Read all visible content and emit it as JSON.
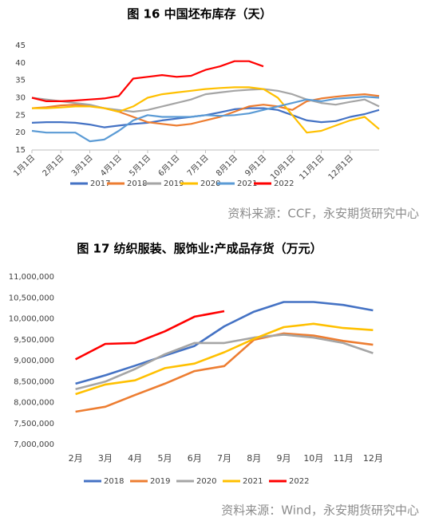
{
  "chart_data": [
    {
      "type": "line",
      "title": "图 16 中国坯布库存（天）",
      "x": [
        0,
        0.5,
        1,
        1.5,
        2,
        2.5,
        3,
        3.5,
        4,
        4.5,
        5,
        5.5,
        6,
        6.5,
        7,
        7.5,
        8,
        8.5,
        9,
        9.5,
        10,
        10.5,
        11,
        11.5,
        12
      ],
      "xlim": [
        0,
        12
      ],
      "xticks": [
        {
          "value": 0,
          "label": "1月1日"
        },
        {
          "value": 1,
          "label": "2月1日"
        },
        {
          "value": 2,
          "label": "3月1日"
        },
        {
          "value": 3,
          "label": "4月1日"
        },
        {
          "value": 4,
          "label": "5月1日"
        },
        {
          "value": 5,
          "label": "6月1日"
        },
        {
          "value": 6,
          "label": "7月1日"
        },
        {
          "value": 7,
          "label": "8月1日"
        },
        {
          "value": 8,
          "label": "9月1日"
        },
        {
          "value": 9,
          "label": "10月1日"
        },
        {
          "value": 10,
          "label": "11月1日"
        },
        {
          "value": 11,
          "label": "12月1日"
        }
      ],
      "ylim": [
        15,
        45
      ],
      "yticks": [
        15,
        20,
        25,
        30,
        35,
        40,
        45
      ],
      "series": [
        {
          "name": "2017",
          "color": "#4472c4",
          "values": [
            22.8,
            23,
            23,
            22.8,
            22.3,
            21.5,
            22,
            22.5,
            22.8,
            23.5,
            24,
            24.5,
            25,
            25.8,
            26.7,
            27,
            27,
            26.5,
            25,
            23.5,
            23,
            23.3,
            24.5,
            25.3,
            26.5
          ]
        },
        {
          "name": "2018",
          "color": "#ed7d31",
          "values": [
            27,
            27.3,
            27.8,
            28,
            27.8,
            27,
            26,
            24.5,
            23,
            22.5,
            22,
            22.5,
            23.5,
            24.5,
            26,
            27.5,
            28,
            27.5,
            26.5,
            29,
            29.8,
            30.3,
            30.7,
            31,
            30.5
          ]
        },
        {
          "name": "2019",
          "color": "#a5a5a5",
          "values": [
            30,
            29.5,
            29,
            28.5,
            28,
            27,
            26.5,
            26,
            26.5,
            27.5,
            28.5,
            29.5,
            31,
            31.5,
            32,
            32.3,
            32.5,
            32,
            31,
            29.5,
            28.5,
            28,
            28.8,
            29.5,
            27.5
          ]
        },
        {
          "name": "2020",
          "color": "#ffc000",
          "values": [
            27,
            27,
            27.2,
            27.5,
            27.5,
            27,
            26,
            27.5,
            30,
            31,
            31.5,
            32,
            32.5,
            32.8,
            33,
            33,
            32.5,
            30,
            25,
            20,
            20.5,
            22,
            23.5,
            24.5,
            21
          ]
        },
        {
          "name": "2021",
          "color": "#5b9bd5",
          "values": [
            20.5,
            20,
            20,
            20,
            17.5,
            18,
            20.5,
            23.5,
            25,
            24.5,
            24.5,
            24.5,
            25,
            24.8,
            25,
            25.5,
            26.5,
            27.5,
            28.5,
            29.5,
            29,
            29.7,
            30,
            30.3,
            30
          ]
        },
        {
          "name": "2022",
          "color": "#ff0000",
          "values": [
            30,
            29,
            29,
            29.2,
            29.5,
            29.8,
            30.5,
            35.5,
            36,
            36.5,
            36,
            36.3,
            38,
            39,
            40.5,
            40.5,
            39,
            null,
            null,
            null,
            null,
            null,
            null,
            null,
            null
          ]
        }
      ],
      "source": "资料来源：CCF，永安期货研究中心"
    },
    {
      "type": "line",
      "title": "图 17 纺织服装、服饰业:产成品存货（万元）",
      "categories": [
        "2月",
        "3月",
        "4月",
        "5月",
        "6月",
        "7月",
        "8月",
        "9月",
        "10月",
        "11月",
        "12月"
      ],
      "ylim": [
        7000000,
        11000000
      ],
      "yticks": [
        {
          "value": 7000000,
          "label": "7,000,000"
        },
        {
          "value": 7500000,
          "label": "7,500,000"
        },
        {
          "value": 8000000,
          "label": "8,000,000"
        },
        {
          "value": 8500000,
          "label": "8,500,000"
        },
        {
          "value": 9000000,
          "label": "9,000,000"
        },
        {
          "value": 9500000,
          "label": "9,500,000"
        },
        {
          "value": 10000000,
          "label": "10,000,000"
        },
        {
          "value": 10500000,
          "label": "10,500,000"
        },
        {
          "value": 11000000,
          "label": "11,000,000"
        }
      ],
      "series": [
        {
          "name": "2018",
          "color": "#4472c4",
          "values": [
            8450000,
            8650000,
            8880000,
            9120000,
            9350000,
            9820000,
            10170000,
            10400000,
            10400000,
            10330000,
            10200000
          ]
        },
        {
          "name": "2019",
          "color": "#ed7d31",
          "values": [
            7780000,
            7900000,
            8180000,
            8450000,
            8750000,
            8870000,
            9500000,
            9650000,
            9600000,
            9470000,
            9380000
          ]
        },
        {
          "name": "2020",
          "color": "#a5a5a5",
          "values": [
            8320000,
            8500000,
            8800000,
            9150000,
            9420000,
            9420000,
            9550000,
            9620000,
            9550000,
            9420000,
            9180000
          ]
        },
        {
          "name": "2021",
          "color": "#ffc000",
          "values": [
            8200000,
            8430000,
            8530000,
            8820000,
            8930000,
            9200000,
            9520000,
            9800000,
            9880000,
            9780000,
            9730000
          ]
        },
        {
          "name": "2022",
          "color": "#ff0000",
          "values": [
            9030000,
            9400000,
            9420000,
            9700000,
            10050000,
            10180000,
            null,
            null,
            null,
            null,
            null
          ]
        }
      ],
      "source": "资料来源：Wind，永安期货研究中心"
    }
  ]
}
